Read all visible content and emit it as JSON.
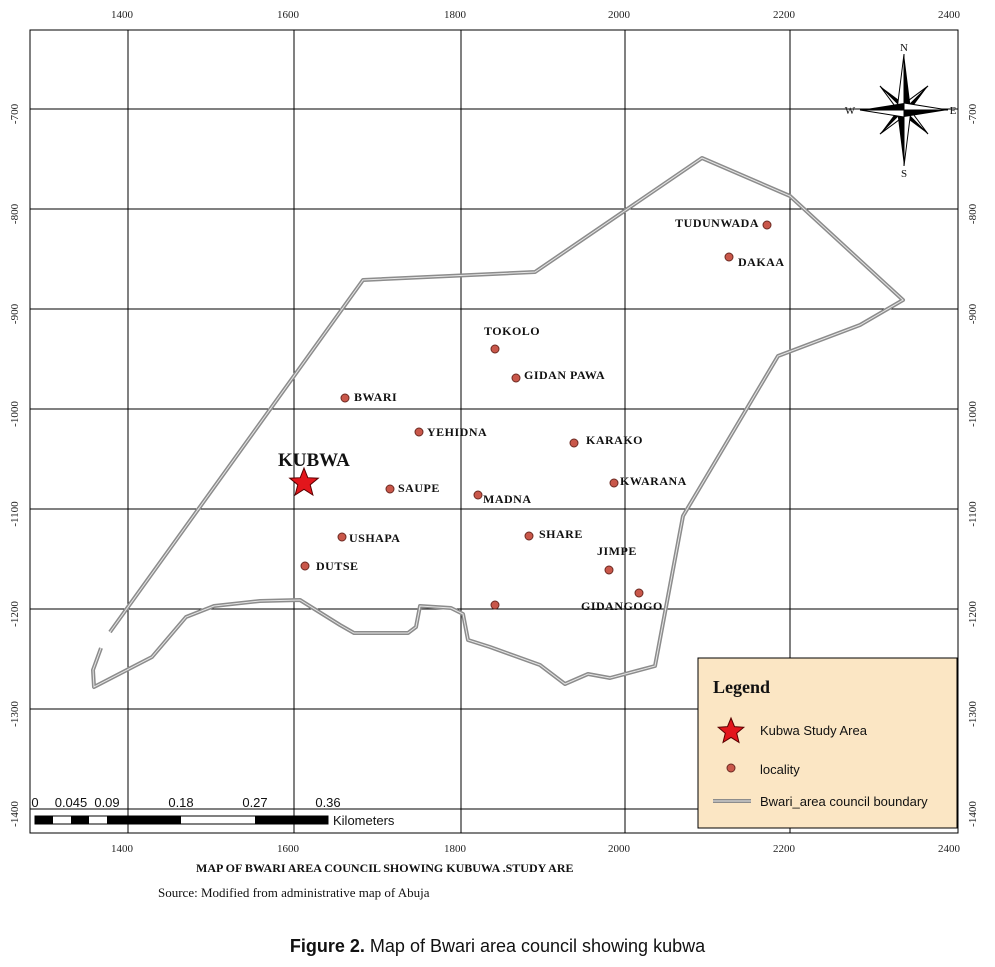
{
  "map": {
    "title": "MAP OF BWARI AREA COUNCIL SHOWING KUBUWA .STUDY ARE",
    "source": "Source: Modified from administrative map of Abuja",
    "x_ticks": [
      "1400",
      "1600",
      "1800",
      "2000",
      "2200",
      "2400"
    ],
    "y_ticks": [
      "-700",
      "-800",
      "-900",
      "-1000",
      "-1100",
      "-1200",
      "-1300",
      "-1400"
    ],
    "compass": {
      "n": "N",
      "s": "S",
      "e": "E",
      "w": "W"
    },
    "study_area": "KUBWA",
    "localities": [
      "TUDUNWADA",
      "DAKAA",
      "TOKOLO",
      "GIDAN PAWA",
      "BWARI",
      "YEHIDNA",
      "KARAKO",
      "SAUPE",
      "MADNA",
      "KWARANA",
      "SHARE",
      "USHAPA",
      "JIMPE",
      "DUTSE",
      "GIDANGOGO"
    ],
    "scale_bar": {
      "labels": [
        "0",
        "0.045",
        "0.09",
        "0.18",
        "0.27",
        "0.36"
      ],
      "unit": "Kilometers"
    },
    "legend": {
      "title": "Legend",
      "items": [
        "Kubwa Study Area",
        "locality",
        "Bwari_area council boundary"
      ]
    },
    "colors": {
      "boundary": "#8c8c8c",
      "locality_fill": "#c9574a",
      "star": "#e3161c",
      "legend_bg": "#fbe6c4"
    }
  },
  "caption": {
    "label": "Figure 2.",
    "text": " Map of Bwari area council showing kubwa"
  }
}
